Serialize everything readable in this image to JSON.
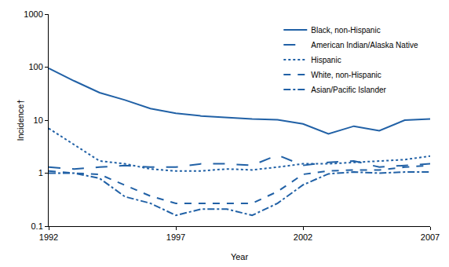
{
  "chart_data": {
    "type": "line",
    "x_label": "Year",
    "y_label": "Incidence†",
    "x": [
      1992,
      1993,
      1994,
      1995,
      1996,
      1997,
      1998,
      1999,
      2000,
      2001,
      2002,
      2003,
      2004,
      2005,
      2006,
      2007
    ],
    "xlim": [
      1992,
      2007
    ],
    "xticks": [
      1992,
      1997,
      2002,
      2007
    ],
    "ylim": [
      0.1,
      1000
    ],
    "yticks": [
      0.1,
      1,
      10,
      100,
      1000
    ],
    "log": "y",
    "grid": false,
    "legend": "top right",
    "series": [
      {
        "name": "Black, non-Hispanic",
        "color": "#2161a6",
        "line_style": "solid",
        "values": [
          95,
          55,
          33,
          24,
          16.5,
          13.5,
          12,
          11.2,
          10.5,
          10.2,
          8.5,
          5.5,
          7.7,
          6.3,
          10,
          10.5
        ]
      },
      {
        "name": "American Indian/Alaska Native",
        "color": "#2161a6",
        "line_style": "longdash",
        "values": [
          1.3,
          1.2,
          1.3,
          1.4,
          1.3,
          1.3,
          1.5,
          1.5,
          1.4,
          2.2,
          1.4,
          1.6,
          1.7,
          1.3,
          1.4,
          1.5
        ]
      },
      {
        "name": "Hispanic",
        "color": "#2161a6",
        "line_style": "dot",
        "values": [
          7,
          3.5,
          1.7,
          1.5,
          1.2,
          1.1,
          1.1,
          1.2,
          1.15,
          1.3,
          1.5,
          1.5,
          1.6,
          1.7,
          1.8,
          2.1
        ]
      },
      {
        "name": "White, non-Hispanic",
        "color": "#2161a6",
        "line_style": "dash",
        "values": [
          1.1,
          1.0,
          0.95,
          0.6,
          0.37,
          0.27,
          0.27,
          0.27,
          0.27,
          0.45,
          0.95,
          1.1,
          1.15,
          1.15,
          1.3,
          1.4
        ]
      },
      {
        "name": "Asian/Pacific Islander",
        "color": "#2161a6",
        "line_style": "dashdot",
        "values": [
          1.0,
          1.0,
          0.8,
          0.36,
          0.27,
          0.16,
          0.21,
          0.21,
          0.16,
          0.27,
          0.6,
          0.97,
          1.05,
          1.0,
          1.05,
          1.05
        ]
      }
    ]
  }
}
